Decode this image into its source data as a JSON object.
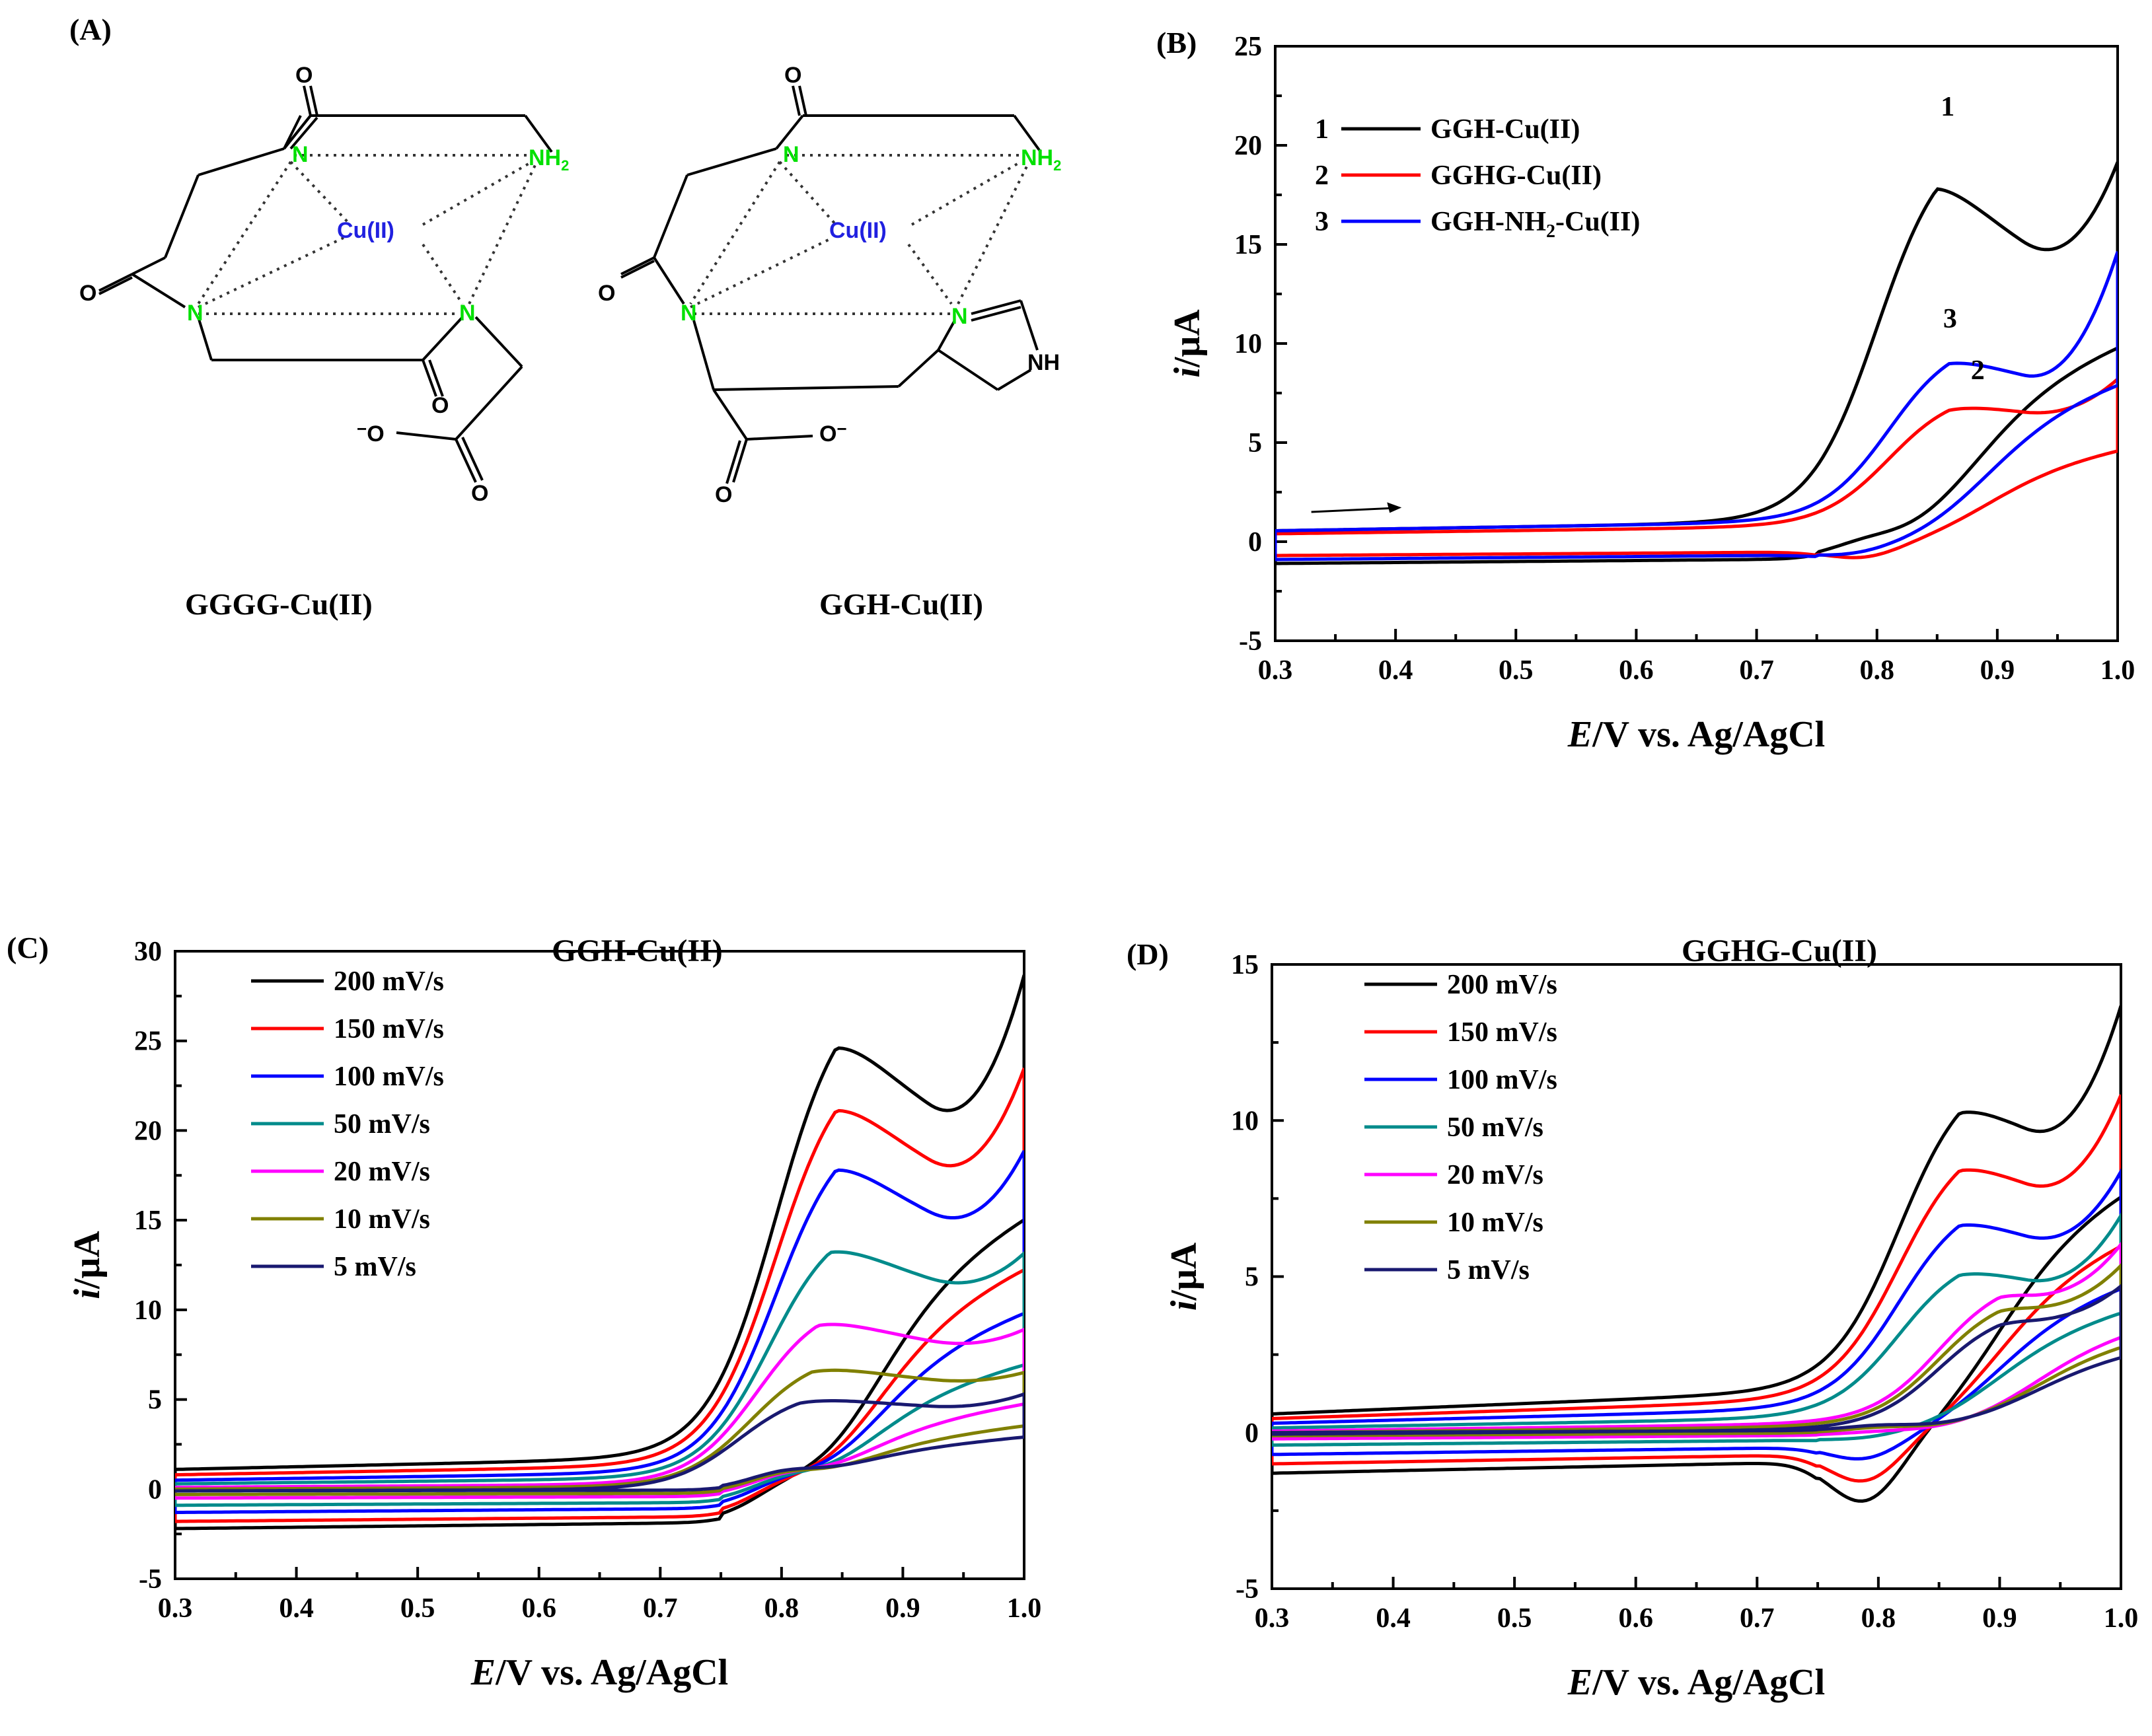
{
  "panels": {
    "A": {
      "label": "(A)",
      "structures": [
        {
          "caption": "GGGG-Cu(II)",
          "atoms": {
            "metal": "Cu(II)",
            "n": "N",
            "nh2": "NH",
            "nh2_sub": "2",
            "o": "O",
            "ominus": "O",
            "charge": "−"
          }
        },
        {
          "caption": "GGH-Cu(II)",
          "atoms": {
            "metal": "Cu(II)",
            "n": "N",
            "nh2": "NH",
            "nh2_sub": "2",
            "o": "O",
            "ominus": "O",
            "charge": "−",
            "nh": "NH"
          }
        }
      ]
    }
  },
  "chart_data": [
    {
      "id": "B",
      "label": "(B)",
      "type": "line",
      "title": "",
      "xlabel_italic": "E",
      "xlabel_rest": "/V vs. Ag/AgCl",
      "ylabel_italic": "i",
      "ylabel_rest": "/μA",
      "xlim": [
        0.3,
        1.0
      ],
      "ylim": [
        -5,
        25
      ],
      "xticks": [
        "0.3",
        "0.4",
        "0.5",
        "0.6",
        "0.7",
        "0.8",
        "0.9",
        "1.0"
      ],
      "yticks": [
        "-5",
        "0",
        "5",
        "10",
        "15",
        "20",
        "25"
      ],
      "series": [
        {
          "name": "GGH-Cu(II)",
          "num": "1",
          "color": "#000000",
          "ipf": 20.6,
          "ipr": -0.3,
          "epf": 0.85,
          "epr": 0.79,
          "lo": 0.6,
          "hi": 17.6,
          "blf": 0.55,
          "blr": -1.1,
          "sl": 1.0,
          "tail": 0.5
        },
        {
          "name": "GGHG-Cu(II)",
          "num": "2",
          "color": "#ff0000",
          "ipf": 7.6,
          "ipr": -1.5,
          "epf": 0.86,
          "epr": 0.79,
          "lo": 0.0,
          "hi": 8.1,
          "blf": 0.4,
          "blr": -0.7,
          "sl": 0.8,
          "tail": 0.7
        },
        {
          "name": "GGH-NH2-Cu(II)",
          "num": "3",
          "color": "#0000ff",
          "ipf": 10.3,
          "ipr": -1.2,
          "epf": 0.86,
          "epr": 0.78,
          "lo": -0.7,
          "hi": 14.2,
          "blf": 0.55,
          "blr": -0.9,
          "sl": 1.0,
          "tail": 0.6
        }
      ],
      "annotations": [
        {
          "text": "1",
          "x": 0.853,
          "y": 21.5,
          "color": "#000000"
        },
        {
          "text": "2",
          "x": 0.878,
          "y": 8.2,
          "color": "#ff0000"
        },
        {
          "text": "3",
          "x": 0.855,
          "y": 10.8,
          "color": "#0000ff"
        }
      ],
      "legend_name_parts": [
        {
          "main": "GGH-Cu(II)"
        },
        {
          "main": "GGHG-Cu(II)"
        },
        {
          "pre": "GGH-NH",
          "sub": "2",
          "post": "-Cu(II)"
        }
      ]
    },
    {
      "id": "C",
      "label": "(C)",
      "type": "line",
      "title": "GGH-Cu(II)",
      "xlabel_italic": "E",
      "xlabel_rest": "/V vs. Ag/AgCl",
      "ylabel_italic": "i",
      "ylabel_rest": "/μA",
      "xlim": [
        0.3,
        1.0
      ],
      "ylim": [
        -5,
        30
      ],
      "xticks": [
        "0.3",
        "0.4",
        "0.5",
        "0.6",
        "0.7",
        "0.8",
        "0.9",
        "1.0"
      ],
      "yticks": [
        "-5",
        "0",
        "5",
        "10",
        "15",
        "20",
        "25",
        "30"
      ],
      "series": [
        {
          "name": "200 mV/s",
          "color": "#000000",
          "ipf": 28.4,
          "ipr": -0.8,
          "epf": 0.845,
          "epr": 0.8,
          "lo": 0.9,
          "hi": 27.0,
          "blf": 1.1,
          "blr": -2.2,
          "sl": 1.5,
          "tail": 0.55
        },
        {
          "name": "150 mV/s",
          "color": "#ff0000",
          "ipf": 24.4,
          "ipr": -0.4,
          "epf": 0.845,
          "epr": 0.8,
          "lo": 0.6,
          "hi": 22.0,
          "blf": 0.8,
          "blr": -1.8,
          "sl": 1.2,
          "tail": 0.55
        },
        {
          "name": "100 mV/s",
          "color": "#0000ff",
          "ipf": 20.6,
          "ipr": 0.0,
          "epf": 0.845,
          "epr": 0.8,
          "lo": 0.4,
          "hi": 17.6,
          "blf": 0.5,
          "blr": -1.3,
          "sl": 1.0,
          "tail": 0.55
        },
        {
          "name": "50 mV/s",
          "color": "#008b8b",
          "ipf": 15.3,
          "ipr": 0.3,
          "epf": 0.84,
          "epr": 0.8,
          "lo": 0.2,
          "hi": 12.4,
          "blf": 0.3,
          "blr": -0.9,
          "sl": 0.7,
          "tail": 0.6
        },
        {
          "name": "20 mV/s",
          "color": "#ff00ff",
          "ipf": 10.6,
          "ipr": 0.6,
          "epf": 0.83,
          "epr": 0.8,
          "lo": 0.1,
          "hi": 8.5,
          "blf": 0.1,
          "blr": -0.5,
          "sl": 0.4,
          "tail": 0.65
        },
        {
          "name": "10 mV/s",
          "color": "#808000",
          "ipf": 7.6,
          "ipr": 0.8,
          "epf": 0.825,
          "epr": 0.8,
          "lo": 0.0,
          "hi": 6.3,
          "blf": 0.0,
          "blr": -0.3,
          "sl": 0.3,
          "tail": 0.7
        },
        {
          "name": "5 mV/s",
          "color": "#191970",
          "ipf": 5.6,
          "ipr": 0.9,
          "epf": 0.815,
          "epr": 0.8,
          "lo": 0.0,
          "hi": 5.2,
          "blf": -0.1,
          "blr": -0.1,
          "sl": 0.2,
          "tail": 0.75
        }
      ]
    },
    {
      "id": "D",
      "label": "(D)",
      "type": "line",
      "title": "GGHG-Cu(II)",
      "xlabel_italic": "E",
      "xlabel_rest": "/V vs. Ag/AgCl",
      "ylabel_italic": "i",
      "ylabel_rest": "/μA",
      "xlim": [
        0.3,
        1.0
      ],
      "ylim": [
        -5,
        15
      ],
      "xticks": [
        "0.3",
        "0.4",
        "0.5",
        "0.6",
        "0.7",
        "0.8",
        "0.9",
        "1.0"
      ],
      "yticks": [
        "-5",
        "0",
        "5",
        "10",
        "15"
      ],
      "series": [
        {
          "name": "200 mV/s",
          "color": "#000000",
          "ipf": 11.7,
          "ipr": -3.9,
          "epf": 0.867,
          "epr": 0.79,
          "lo": 0.0,
          "hi": 13.3,
          "blf": 0.6,
          "blr": -1.3,
          "sl": 1.6,
          "tail": 0.6
        },
        {
          "name": "150 mV/s",
          "color": "#ff0000",
          "ipf": 9.6,
          "ipr": -2.8,
          "epf": 0.867,
          "epr": 0.79,
          "lo": 0.0,
          "hi": 10.5,
          "blf": 0.45,
          "blr": -1.0,
          "sl": 1.3,
          "tail": 0.6
        },
        {
          "name": "100 mV/s",
          "color": "#0000ff",
          "ipf": 7.6,
          "ipr": -1.6,
          "epf": 0.867,
          "epr": 0.79,
          "lo": 0.0,
          "hi": 8.1,
          "blf": 0.3,
          "blr": -0.7,
          "sl": 1.0,
          "tail": 0.6
        },
        {
          "name": "50 mV/s",
          "color": "#008b8b",
          "ipf": 5.8,
          "ipr": -0.5,
          "epf": 0.867,
          "epr": 0.79,
          "lo": 0.0,
          "hi": 6.8,
          "blf": 0.15,
          "blr": -0.4,
          "sl": 0.7,
          "tail": 0.65
        },
        {
          "name": "20 mV/s",
          "color": "#ff00ff",
          "ipf": 5.0,
          "ipr": -0.1,
          "epf": 0.9,
          "epr": 0.8,
          "lo": 0.0,
          "hi": 5.8,
          "blf": 0.05,
          "blr": -0.2,
          "sl": 0.5,
          "tail": 0.7
        },
        {
          "name": "10 mV/s",
          "color": "#808000",
          "ipf": 4.5,
          "ipr": 0.1,
          "epf": 0.9,
          "epr": 0.8,
          "lo": 0.0,
          "hi": 5.2,
          "blf": 0.0,
          "blr": -0.1,
          "sl": 0.4,
          "tail": 0.75
        },
        {
          "name": "5 mV/s",
          "color": "#191970",
          "ipf": 4.0,
          "ipr": 0.2,
          "epf": 0.9,
          "epr": 0.8,
          "lo": 0.0,
          "hi": 4.6,
          "blf": -0.05,
          "blr": 0.0,
          "sl": 0.3,
          "tail": 0.8
        }
      ]
    }
  ]
}
